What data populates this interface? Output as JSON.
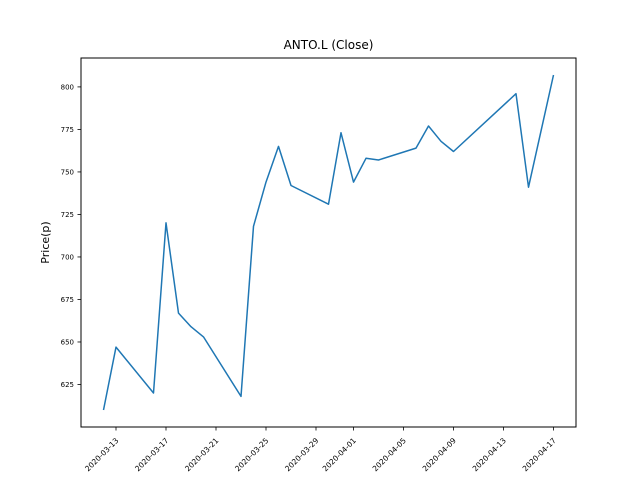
{
  "window": {
    "background": "#ffffff"
  },
  "chart_data": {
    "type": "line",
    "title": "ANTO.L (Close)",
    "xlabel": "",
    "ylabel": "Price(p)",
    "series": [
      {
        "name": "ANTO.L Close",
        "x": [
          "2020-03-12",
          "2020-03-13",
          "2020-03-16",
          "2020-03-17",
          "2020-03-18",
          "2020-03-19",
          "2020-03-20",
          "2020-03-23",
          "2020-03-24",
          "2020-03-25",
          "2020-03-26",
          "2020-03-27",
          "2020-03-30",
          "2020-03-31",
          "2020-04-01",
          "2020-04-02",
          "2020-04-03",
          "2020-04-06",
          "2020-04-07",
          "2020-04-08",
          "2020-04-09",
          "2020-04-14",
          "2020-04-15",
          "2020-04-16",
          "2020-04-17"
        ],
        "values": [
          610,
          647,
          620,
          720,
          667,
          659,
          653,
          618,
          718,
          744,
          765,
          742,
          731,
          773,
          744,
          758,
          757,
          764,
          777,
          768,
          762,
          796,
          741,
          774,
          807
        ]
      }
    ],
    "line_color": "#1f77b4",
    "axis_color": "#000000",
    "y_ticks": [
      625,
      650,
      675,
      700,
      725,
      750,
      775,
      800
    ],
    "x_ticks": [
      "2020-03-13",
      "2020-03-17",
      "2020-03-21",
      "2020-03-25",
      "2020-03-29",
      "2020-04-01",
      "2020-04-05",
      "2020-04-09",
      "2020-04-13",
      "2020-04-17"
    ],
    "ylim": [
      600,
      817
    ],
    "xlim_margin_days": 1.8,
    "grid": false,
    "legend": null
  }
}
